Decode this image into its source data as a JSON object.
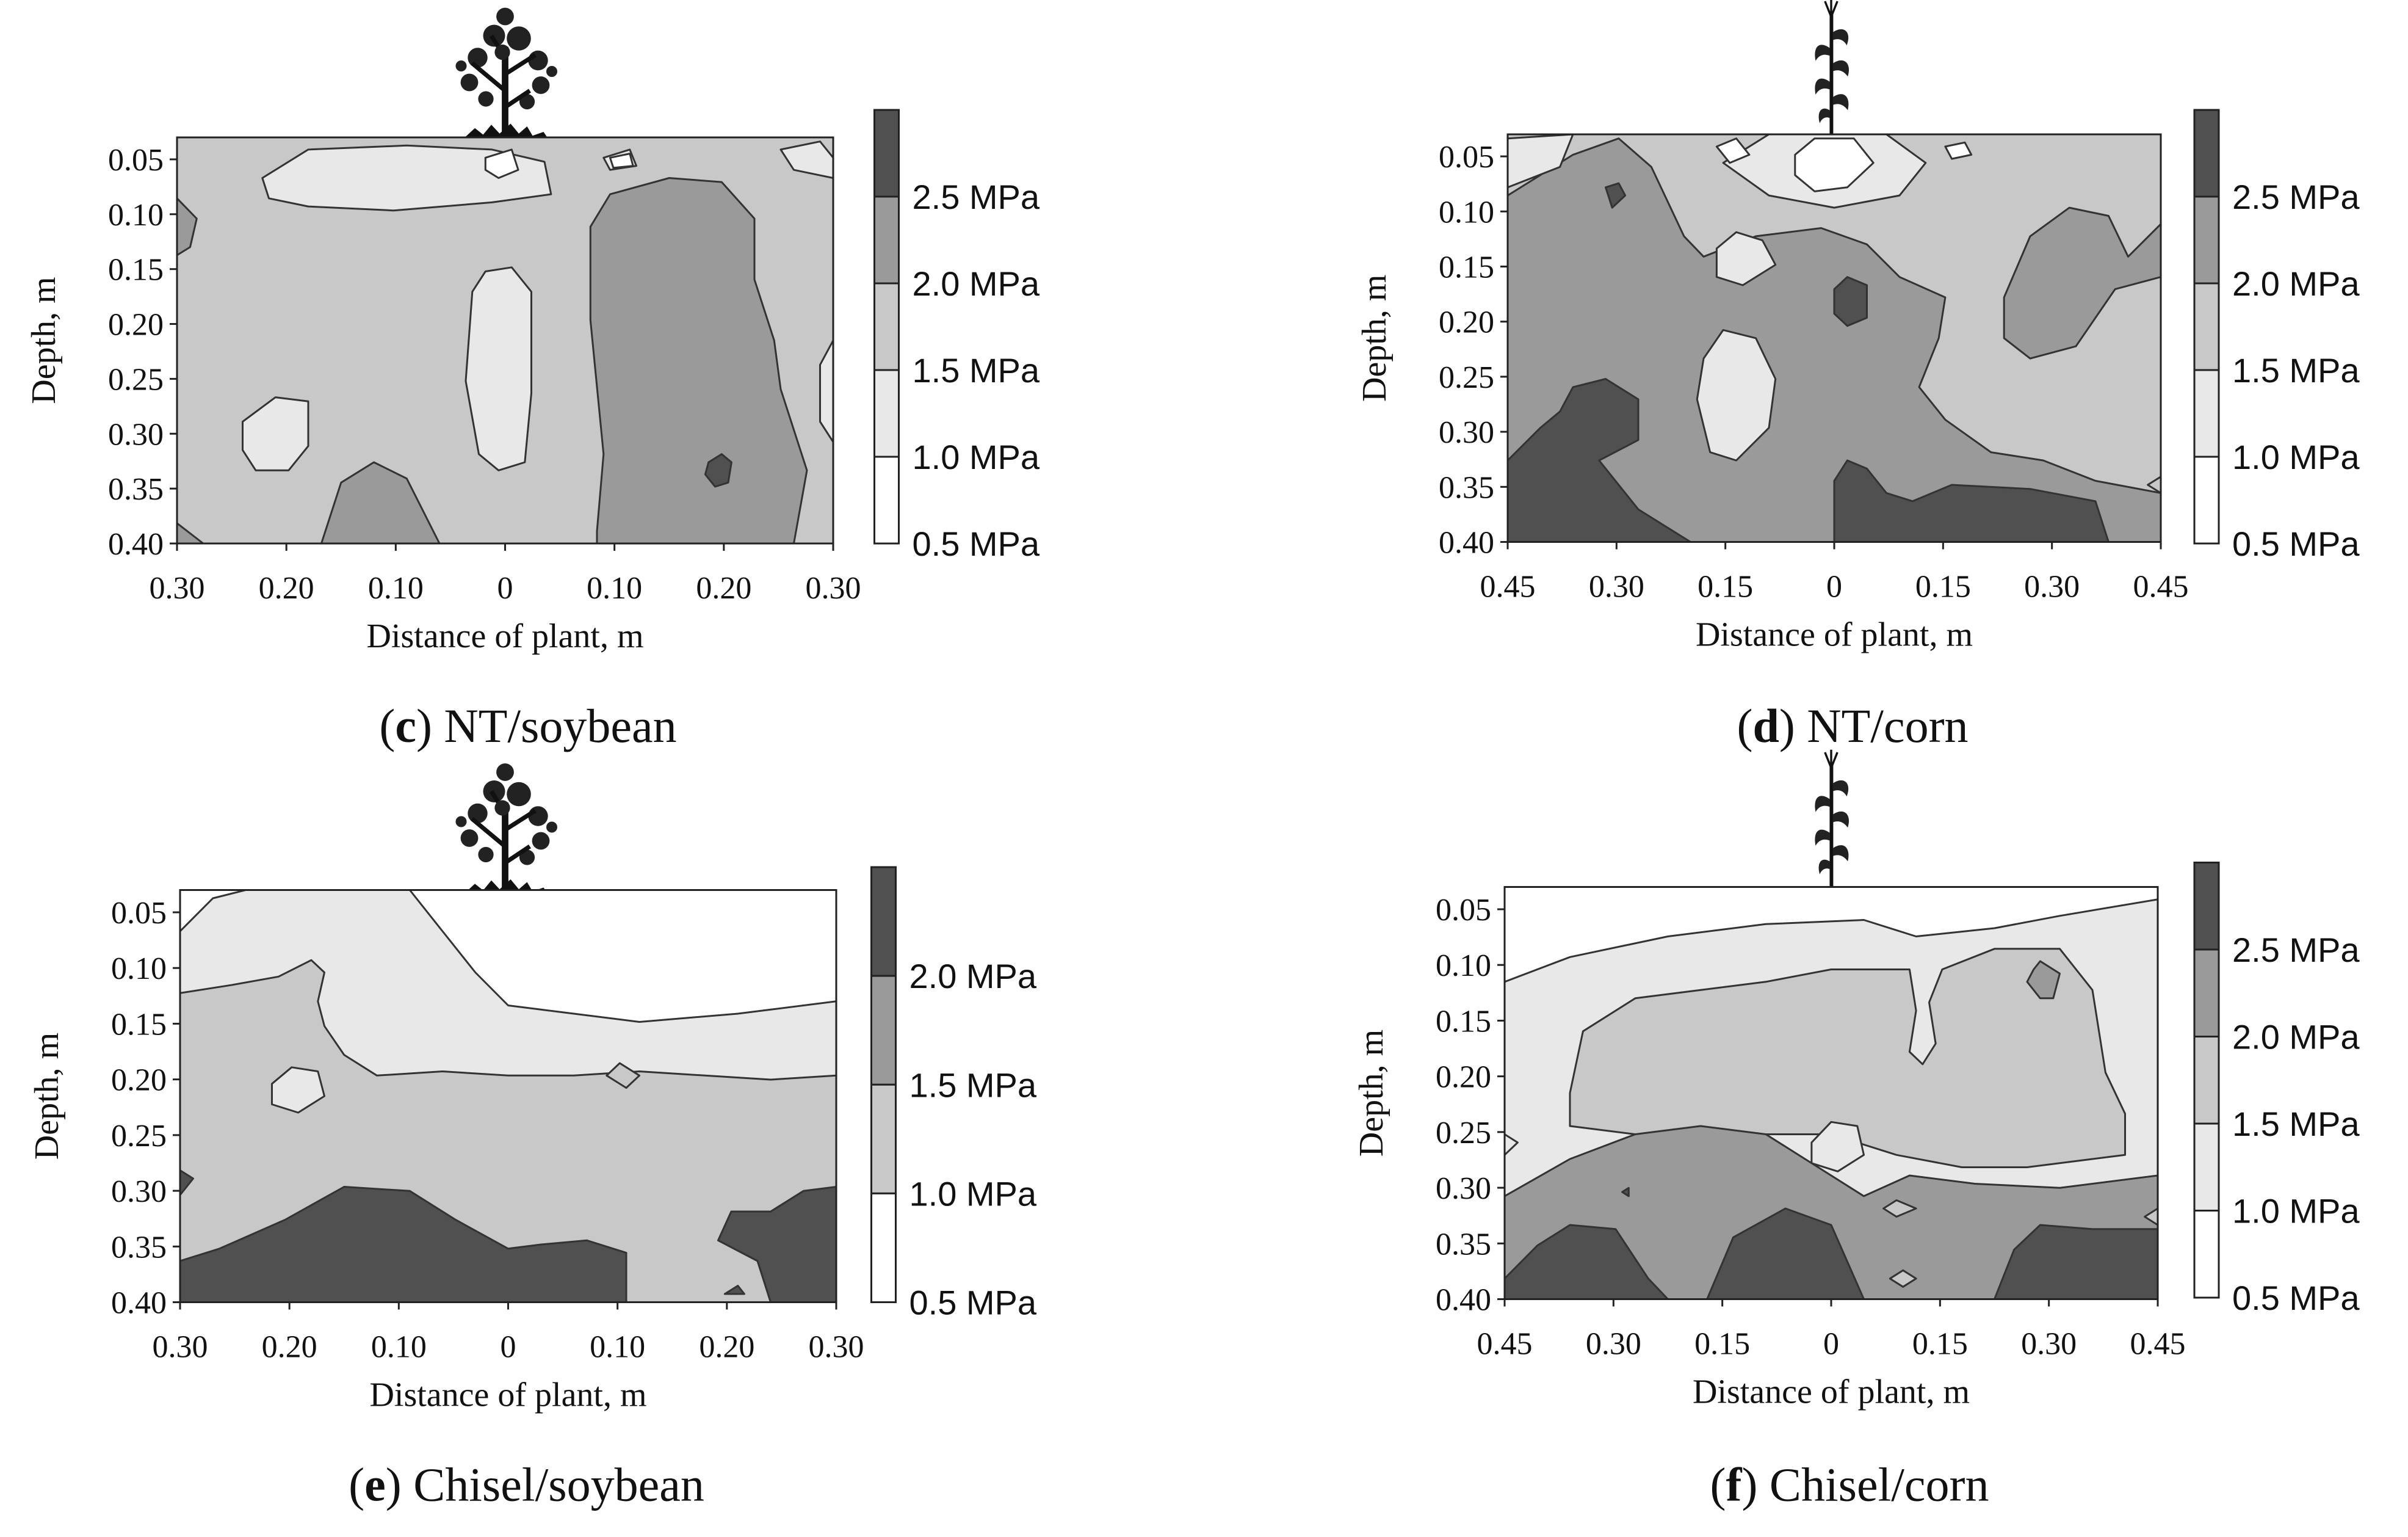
{
  "figure": {
    "colors": {
      "level_0_5_to_1_0": "#ffffff",
      "level_1_0_to_1_5": "#e8e8e8",
      "level_1_5_to_2_0": "#c8c8c8",
      "level_2_0_to_2_5": "#9a9a9a",
      "level_2_5_plus": "#505050",
      "contour_line": "#333333"
    },
    "plant_icons": [
      "soybean-plant-icon",
      "corn-plant-icon"
    ]
  },
  "chart_data": [
    {
      "type": "heatmap",
      "label_letter": "c",
      "label_text": " NT/soybean",
      "icon": "soybean-plant-icon",
      "xlabel": "Distance of plant, m",
      "ylabel": "Depth, m",
      "x_ticks": [
        "0.30",
        "0.20",
        "0.10",
        "0",
        "0.10",
        "0.20",
        "0.30"
      ],
      "x_range": [
        -0.3,
        0.3
      ],
      "y_ticks": [
        "0.05",
        "0.10",
        "0.15",
        "0.20",
        "0.25",
        "0.30",
        "0.35",
        "0.40"
      ],
      "y_range": [
        0.03,
        0.4
      ],
      "legend": [
        "2.5 MPa",
        "2.0 MPa",
        "1.5 MPa",
        "1.0 MPa",
        "0.5 MPa"
      ],
      "regions": [
        {
          "level": "2.0-2.5 MPa",
          "x": [
            0.08,
            0.22
          ],
          "depth": [
            0.08,
            0.39
          ]
        },
        {
          "level": "2.0-2.5 MPa",
          "x": [
            -0.17,
            -0.04
          ],
          "depth": [
            0.33,
            0.4
          ]
        },
        {
          "level": "1.0-1.5 MPa",
          "x": [
            -0.19,
            0.04
          ],
          "depth": [
            0.04,
            0.09
          ]
        },
        {
          "level": "1.0-1.5 MPa",
          "x": [
            -0.03,
            0.03
          ],
          "depth": [
            0.15,
            0.32
          ]
        },
        {
          "level": "1.0-1.5 MPa",
          "x": [
            -0.24,
            -0.17
          ],
          "depth": [
            0.27,
            0.32
          ]
        },
        {
          "level": "2.5+ MPa",
          "x": [
            0.18,
            0.21
          ],
          "depth": [
            0.33,
            0.36
          ]
        }
      ]
    },
    {
      "type": "heatmap",
      "label_letter": "d",
      "label_text": " NT/corn",
      "icon": "corn-plant-icon",
      "xlabel": "Distance of plant, m",
      "ylabel": "Depth, m",
      "x_ticks": [
        "0.45",
        "0.30",
        "0.15",
        "0",
        "0.15",
        "0.30",
        "0.45"
      ],
      "x_range": [
        -0.45,
        0.45
      ],
      "y_ticks": [
        "0.05",
        "0.10",
        "0.15",
        "0.20",
        "0.25",
        "0.30",
        "0.35",
        "0.40"
      ],
      "y_range": [
        0.03,
        0.4
      ],
      "legend": [
        "2.5 MPa",
        "2.0 MPa",
        "1.5 MPa",
        "1.0 MPa",
        "0.5 MPa"
      ],
      "regions": [
        {
          "level": "2.0-2.5 MPa",
          "x": [
            -0.45,
            0.15
          ],
          "depth": [
            0.08,
            0.38
          ]
        },
        {
          "level": "2.5+ MPa",
          "x": [
            -0.45,
            -0.25
          ],
          "depth": [
            0.27,
            0.4
          ]
        },
        {
          "level": "2.5+ MPa",
          "x": [
            0.0,
            0.35
          ],
          "depth": [
            0.34,
            0.4
          ]
        },
        {
          "level": "2.5+ MPa",
          "x": [
            -0.02,
            0.03
          ],
          "depth": [
            0.16,
            0.2
          ]
        },
        {
          "level": "1.0-1.5 MPa",
          "x": [
            -0.21,
            0.08
          ],
          "depth": [
            0.03,
            0.09
          ]
        },
        {
          "level": "0.5-1.0 MPa",
          "x": [
            -0.05,
            0.06
          ],
          "depth": [
            0.03,
            0.07
          ]
        }
      ]
    },
    {
      "type": "heatmap",
      "label_letter": "e",
      "label_text": " Chisel/soybean",
      "icon": "soybean-plant-icon",
      "xlabel": "Distance of plant, m",
      "ylabel": "Depth, m",
      "x_ticks": [
        "0.30",
        "0.20",
        "0.10",
        "0",
        "0.10",
        "0.20",
        "0.30"
      ],
      "x_range": [
        -0.3,
        0.3
      ],
      "y_ticks": [
        "0.05",
        "0.10",
        "0.15",
        "0.20",
        "0.25",
        "0.30",
        "0.35",
        "0.40"
      ],
      "y_range": [
        0.03,
        0.4
      ],
      "legend": [
        "2.0 MPa",
        "1.5 MPa",
        "1.0 MPa",
        "0.5 MPa"
      ],
      "regions": [
        {
          "level": "0.5-1.0 MPa",
          "x": [
            -0.07,
            0.3
          ],
          "depth": [
            0.03,
            0.13
          ]
        },
        {
          "level": "1.0-1.5 MPa",
          "x": [
            -0.3,
            0.3
          ],
          "depth": [
            0.03,
            0.21
          ]
        },
        {
          "level": "1.5-2.0 MPa",
          "x": [
            -0.3,
            0.3
          ],
          "depth": [
            0.1,
            0.4
          ]
        },
        {
          "level": "2.0+ MPa",
          "x": [
            -0.3,
            -0.05
          ],
          "depth": [
            0.29,
            0.4
          ]
        },
        {
          "level": "2.0+ MPa",
          "x": [
            0.18,
            0.3
          ],
          "depth": [
            0.3,
            0.4
          ]
        }
      ]
    },
    {
      "type": "heatmap",
      "label_letter": "f",
      "label_text": " Chisel/corn",
      "icon": "corn-plant-icon",
      "xlabel": "Distance of plant, m",
      "ylabel": "Depth, m",
      "x_ticks": [
        "0.45",
        "0.30",
        "0.15",
        "0",
        "0.15",
        "0.30",
        "0.45"
      ],
      "x_range": [
        -0.45,
        0.45
      ],
      "y_ticks": [
        "0.05",
        "0.10",
        "0.15",
        "0.20",
        "0.25",
        "0.30",
        "0.35",
        "0.40"
      ],
      "y_range": [
        0.03,
        0.4
      ],
      "legend": [
        "2.5 MPa",
        "2.0 MPa",
        "1.5 MPa",
        "1.0 MPa",
        "0.5 MPa"
      ],
      "regions": [
        {
          "level": "0.5-1.0 MPa",
          "x": [
            -0.45,
            0.45
          ],
          "depth": [
            0.03,
            0.07
          ]
        },
        {
          "level": "1.0-1.5 MPa",
          "x": [
            -0.45,
            0.45
          ],
          "depth": [
            0.04,
            0.3
          ]
        },
        {
          "level": "1.5-2.0 MPa",
          "x": [
            -0.36,
            0.4
          ],
          "depth": [
            0.08,
            0.33
          ]
        },
        {
          "level": "2.0-2.5 MPa",
          "x": [
            -0.45,
            0.45
          ],
          "depth": [
            0.25,
            0.4
          ]
        },
        {
          "level": "2.5+ MPa",
          "x": [
            -0.45,
            -0.15
          ],
          "depth": [
            0.34,
            0.4
          ]
        },
        {
          "level": "2.5+ MPa",
          "x": [
            -0.12,
            0.06
          ],
          "depth": [
            0.32,
            0.4
          ]
        },
        {
          "level": "2.5+ MPa",
          "x": [
            0.25,
            0.45
          ],
          "depth": [
            0.34,
            0.4
          ]
        },
        {
          "level": "2.0-2.5 MPa",
          "x": [
            0.27,
            0.31
          ],
          "depth": [
            0.09,
            0.12
          ]
        }
      ]
    }
  ]
}
